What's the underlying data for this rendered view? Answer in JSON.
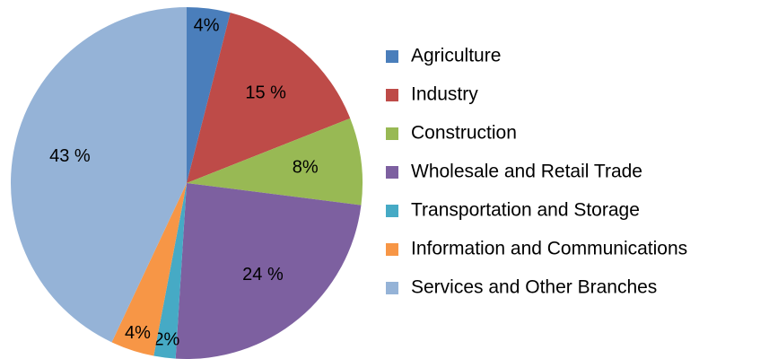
{
  "chart_data": {
    "type": "pie",
    "categories": [
      "Agriculture",
      "Industry",
      "Construction",
      "Wholesale and Retail Trade",
      "Transportation and Storage",
      "Information and Communications",
      "Services and Other Branches"
    ],
    "values": [
      4,
      15,
      8,
      24,
      2,
      4,
      43
    ],
    "value_labels": [
      "4%",
      "15 %",
      "8%",
      "24 %",
      "2%",
      "4%",
      "43 %"
    ],
    "colors": [
      "#4a7ebb",
      "#be4b48",
      "#98b954",
      "#7d60a0",
      "#46aac5",
      "#f79646",
      "#95b3d7"
    ],
    "legend": "right"
  }
}
